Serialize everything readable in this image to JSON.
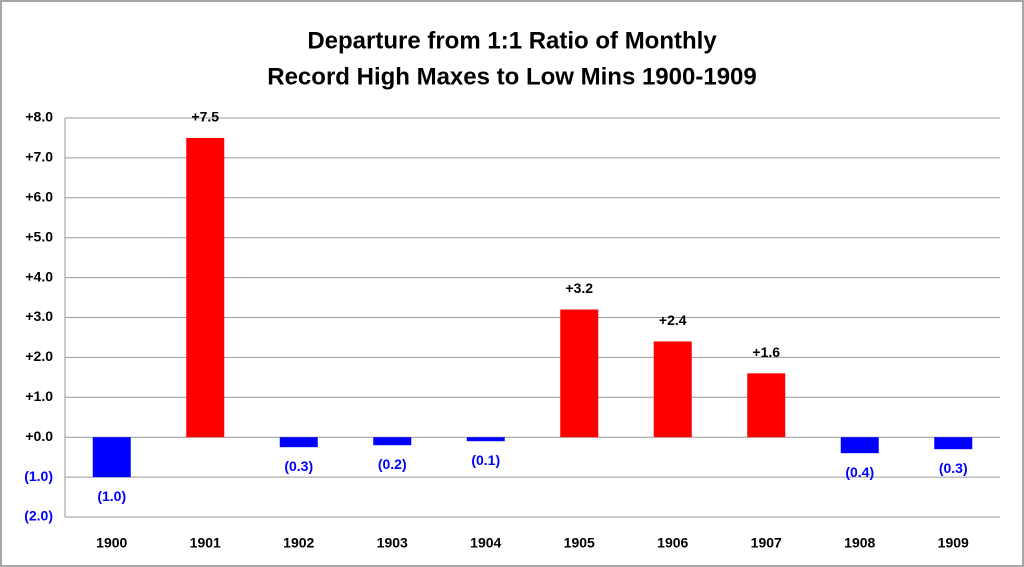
{
  "chart_data": {
    "type": "bar",
    "title": [
      "Departure from 1:1 Ratio of Monthly",
      "Record High Maxes to Low Mins 1900-1909"
    ],
    "categories": [
      "1900",
      "1901",
      "1902",
      "1903",
      "1904",
      "1905",
      "1906",
      "1907",
      "1908",
      "1909"
    ],
    "values": [
      -1.0,
      7.5,
      -0.25,
      -0.2,
      -0.1,
      3.2,
      2.4,
      1.6,
      -0.4,
      -0.3
    ],
    "value_labels": [
      "(1.0)",
      "+7.5",
      "(0.3)",
      "(0.2)",
      "(0.1)",
      "+3.2",
      "+2.4",
      "+1.6",
      "(0.4)",
      "(0.3)"
    ],
    "colors": [
      "#0000ff",
      "#ff0000",
      "#0000ff",
      "#0000ff",
      "#0000ff",
      "#ff0000",
      "#ff0000",
      "#ff0000",
      "#0000ff",
      "#0000ff"
    ],
    "negative_label_color": "#0000ff",
    "ylim": [
      -2,
      8
    ],
    "yticks": [
      {
        "value": -2,
        "label": "(2.0)"
      },
      {
        "value": -1,
        "label": "(1.0)"
      },
      {
        "value": 0,
        "label": "+0.0"
      },
      {
        "value": 1,
        "label": "+1.0"
      },
      {
        "value": 2,
        "label": "+2.0"
      },
      {
        "value": 3,
        "label": "+3.0"
      },
      {
        "value": 4,
        "label": "+4.0"
      },
      {
        "value": 5,
        "label": "+5.0"
      },
      {
        "value": 6,
        "label": "+6.0"
      },
      {
        "value": 7,
        "label": "+7.0"
      },
      {
        "value": 8,
        "label": "+8.0"
      }
    ],
    "grid": true
  }
}
